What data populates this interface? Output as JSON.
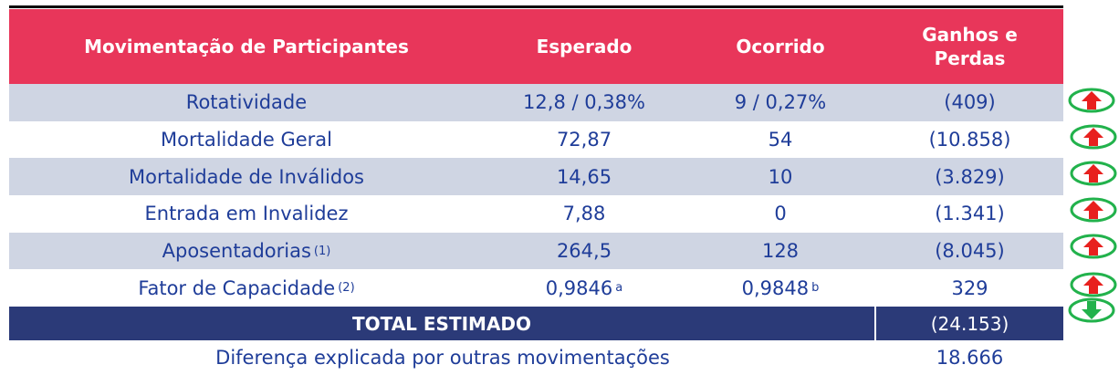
{
  "table": {
    "header": [
      "Movimentação de Participantes",
      "Esperado",
      "Ocorrido",
      "Ganhos e Perdas"
    ],
    "rows": [
      {
        "label": "Rotatividade",
        "expected": "12,8 / 0,38%",
        "occurred": "9 / 0,27%",
        "result": "(409)"
      },
      {
        "label": "Mortalidade Geral",
        "expected": "72,87",
        "occurred": "54",
        "result": "(10.858)"
      },
      {
        "label": "Mortalidade de Inválidos",
        "expected": "14,65",
        "occurred": "10",
        "result": "(3.829)"
      },
      {
        "label": "Entrada em Invalidez",
        "expected": "7,88",
        "occurred": "0",
        "result": "(1.341)"
      },
      {
        "label": "Aposentadorias",
        "label_sup": "(1)",
        "expected": "264,5",
        "occurred": "128",
        "result": "(8.045)"
      },
      {
        "label": "Fator de Capacidade",
        "label_sup": "(2)",
        "expected": "0,9846",
        "expected_sup": "a",
        "occurred": "0,9848",
        "occurred_sup": "b",
        "result": "329"
      }
    ],
    "total": {
      "label": "TOTAL ESTIMADO",
      "value": "(24.153)"
    },
    "other": {
      "label": "Diferença explicada por outras movimentações",
      "value": "18.666"
    }
  }
}
